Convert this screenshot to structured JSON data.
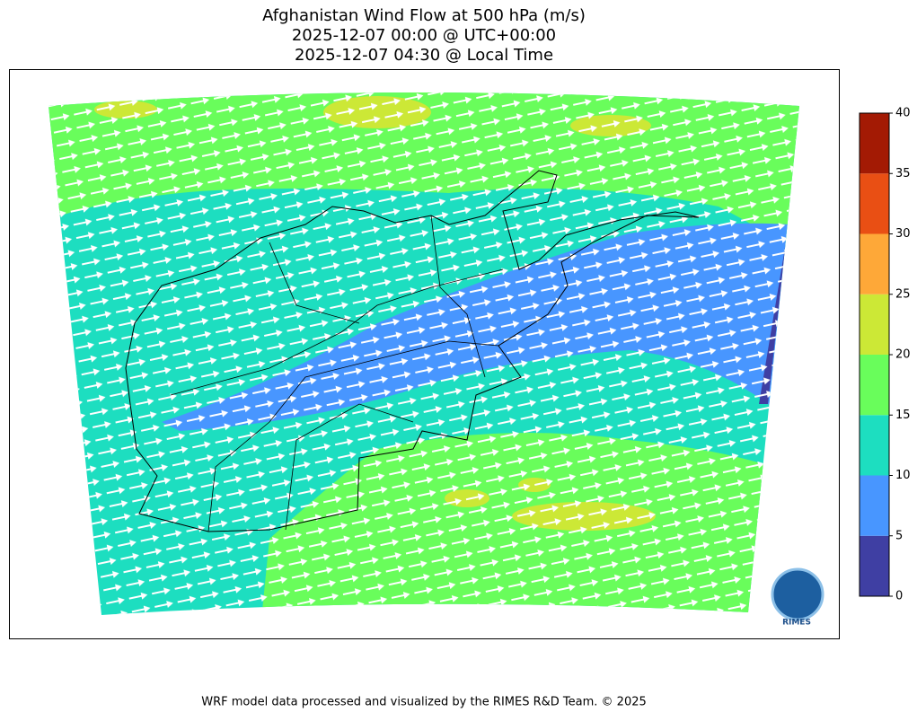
{
  "title": [
    "Afghanistan Wind Flow at 500 hPa (m/s)",
    "2025-12-07 00:00 @ UTC+00:00",
    "2025-12-07 04:30 @ Local Time"
  ],
  "colorbar": {
    "levels": [
      0,
      5,
      10,
      15,
      20,
      25,
      30,
      35,
      40
    ],
    "colors": [
      "#3f3fa3",
      "#4896ff",
      "#1ddec0",
      "#69fd5b",
      "#cce836",
      "#fea838",
      "#e94f14",
      "#a31a04"
    ]
  },
  "logo_text": "RIMES",
  "footer": "WRF model data processed and visualized by the RIMES R&D Team. © 2025"
}
